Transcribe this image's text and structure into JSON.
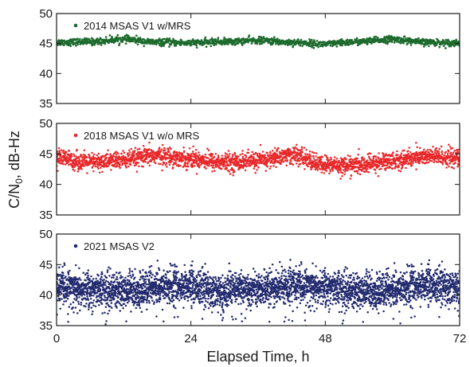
{
  "chart_data": {
    "type": "scatter",
    "ylabel_main": "C/N",
    "ylabel_sub": "0",
    "ylabel_rest": ", dB-Hz",
    "xlabel": "Elapsed Time, h",
    "xlim": [
      0,
      72
    ],
    "xticks": [
      0,
      24,
      48,
      72
    ],
    "xtick_labels": [
      "0",
      "24",
      "48",
      "72"
    ],
    "panels": [
      {
        "series_name": "2014 MSAS V1 w/MRS",
        "color": "#1e6b2e",
        "ylim": [
          35,
          50
        ],
        "yticks": [
          35,
          40,
          45,
          50
        ],
        "ytick_labels": [
          "35",
          "40",
          "45",
          "50"
        ],
        "mean_x": [
          0,
          6,
          12,
          18,
          24,
          30,
          36,
          42,
          48,
          54,
          60,
          66,
          72
        ],
        "mean_y": [
          45.2,
          45.3,
          45.7,
          45.2,
          45.1,
          45.3,
          45.5,
          45.2,
          44.9,
          45.3,
          45.7,
          45.2,
          45.1
        ],
        "spread": 0.5
      },
      {
        "series_name": "2018 MSAS V1 w/o MRS",
        "color": "#e8282a",
        "ylim": [
          35,
          50
        ],
        "yticks": [
          35,
          40,
          45,
          50
        ],
        "ytick_labels": [
          "35",
          "40",
          "45",
          "50"
        ],
        "mean_x": [
          0,
          6,
          12,
          18,
          24,
          30,
          36,
          42,
          48,
          54,
          60,
          66,
          72
        ],
        "mean_y": [
          44.3,
          43.6,
          44.0,
          44.7,
          44.2,
          43.6,
          43.9,
          44.8,
          43.2,
          43.1,
          43.9,
          44.6,
          44.3
        ],
        "spread": 1.3
      },
      {
        "series_name": "2021 MSAS V2",
        "color": "#222a6e",
        "ylim": [
          35,
          50
        ],
        "yticks": [
          35,
          40,
          45,
          50
        ],
        "ytick_labels": [
          "35",
          "40",
          "45",
          "50"
        ],
        "mean_x": [
          0,
          6,
          12,
          18,
          24,
          30,
          36,
          42,
          48,
          54,
          60,
          66,
          72
        ],
        "mean_y": [
          41.6,
          41.0,
          40.7,
          41.5,
          41.6,
          40.8,
          41.2,
          41.8,
          41.4,
          40.6,
          41.1,
          41.8,
          41.5
        ],
        "spread": 2.4
      }
    ]
  }
}
